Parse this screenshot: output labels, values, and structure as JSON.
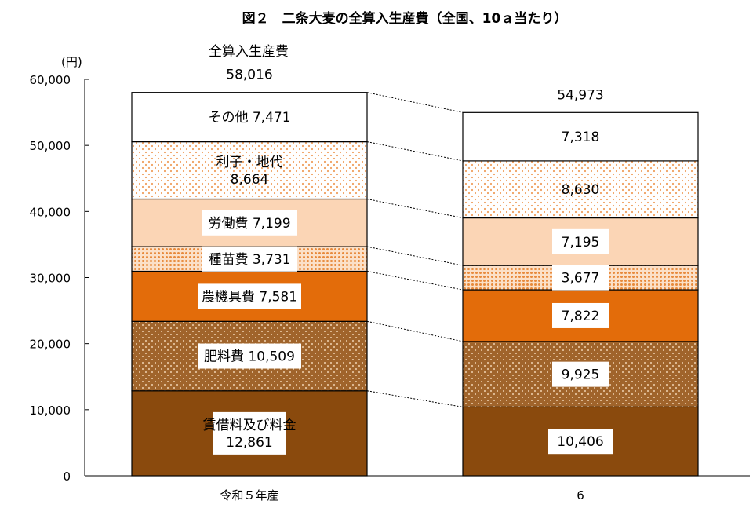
{
  "chart_data": {
    "type": "bar",
    "stacked": true,
    "title": "図２　二条大麦の全算入生産費（全国、10ａ当たり）",
    "ylabel": "(円)",
    "ylim": [
      0,
      60000
    ],
    "yticks": [
      "0",
      "10,000",
      "20,000",
      "30,000",
      "40,000",
      "50,000",
      "60,000"
    ],
    "categories": [
      "令和５年産",
      "6"
    ],
    "total_header": "全算入生産費",
    "totals": [
      58016,
      54973
    ],
    "total_labels": [
      "58,016",
      "54,973"
    ],
    "series": [
      {
        "name": "賃借料及び料金",
        "values": [
          12861,
          10406
        ],
        "color": "#8a4a0d",
        "labels": [
          [
            "賃借料及び料金",
            "12,861"
          ],
          [
            "10,406"
          ]
        ]
      },
      {
        "name": "肥料費",
        "values": [
          10509,
          9925
        ],
        "color": "#b06a2c",
        "labels": [
          [
            "肥料費  10,509"
          ],
          [
            "9,925"
          ]
        ]
      },
      {
        "name": "農機具費",
        "values": [
          7581,
          7822
        ],
        "color": "#e36c0a",
        "labels": [
          [
            "農機具費  7,581"
          ],
          [
            "7,822"
          ]
        ]
      },
      {
        "name": "種苗費",
        "values": [
          3731,
          3677
        ],
        "color": "#f2a56a",
        "labels": [
          [
            "種苗費  3,731"
          ],
          [
            "3,677"
          ]
        ]
      },
      {
        "name": "労働費",
        "values": [
          7199,
          7195
        ],
        "color": "#fbd5b5",
        "labels": [
          [
            "労働費  7,199"
          ],
          [
            "7,195"
          ]
        ]
      },
      {
        "name": "利子・地代",
        "values": [
          8664,
          8630
        ],
        "color": "#ffffff",
        "labels": [
          [
            "利子・地代",
            "8,664"
          ],
          [
            "8,630"
          ]
        ]
      },
      {
        "name": "その他",
        "values": [
          7471,
          7318
        ],
        "color": "#ffffff",
        "labels": [
          [
            "その他  7,471"
          ],
          [
            "7,318"
          ]
        ]
      }
    ]
  }
}
